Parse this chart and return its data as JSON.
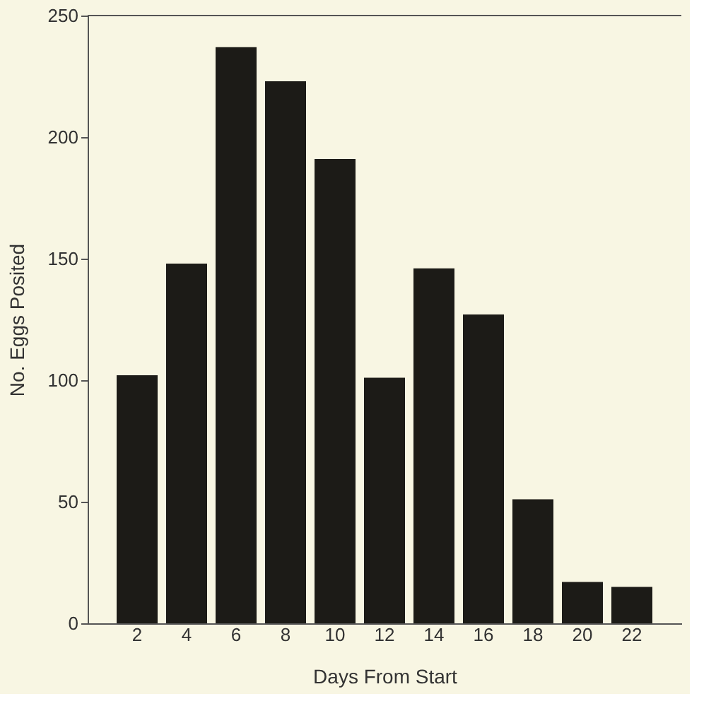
{
  "chart_data": {
    "type": "bar",
    "xlabel": "Days From Start",
    "ylabel": "No. Eggs Posited",
    "categories": [
      "2",
      "4",
      "6",
      "8",
      "10",
      "12",
      "14",
      "16",
      "18",
      "20",
      "22"
    ],
    "values": [
      102,
      148,
      237,
      223,
      191,
      101,
      146,
      127,
      51,
      17,
      15
    ],
    "color": "#1c1b17",
    "ylim": [
      0,
      250
    ],
    "yticks": [
      0,
      50,
      100,
      150,
      200,
      250
    ],
    "grid": false
  }
}
